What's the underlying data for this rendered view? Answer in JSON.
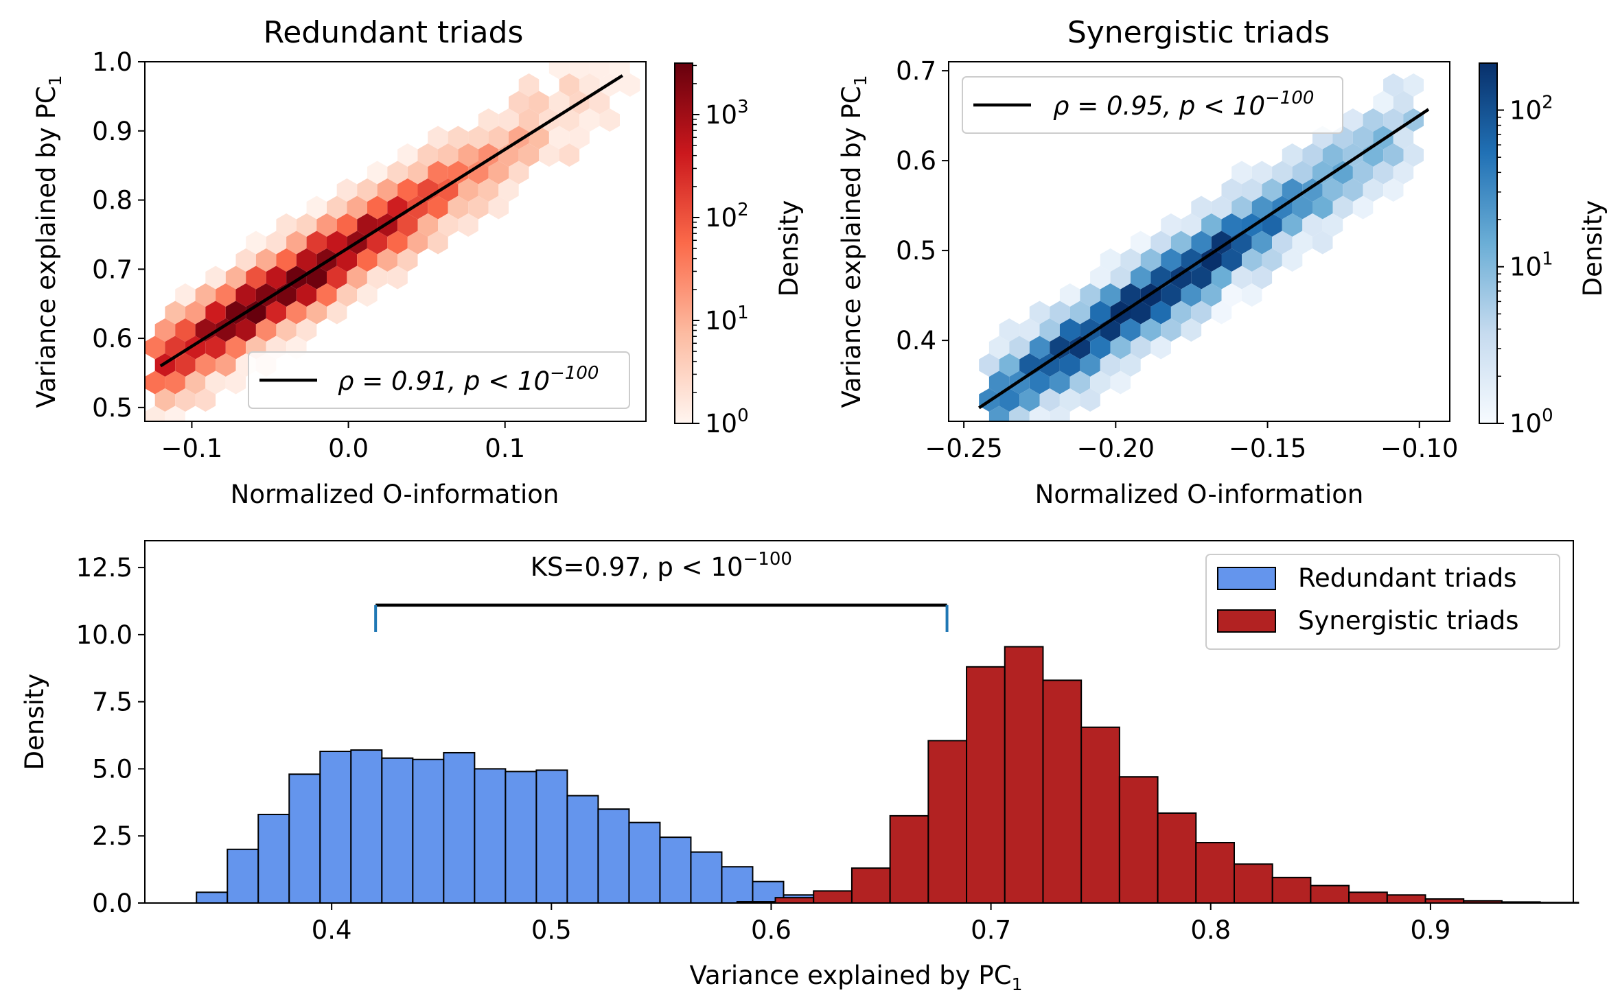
{
  "chart_data": [
    {
      "type": "heatmap",
      "title": "Redundant triads",
      "xlabel": "Normalized O-information",
      "ylabel_main": "Variance explained by PC",
      "ylabel_sub": "1",
      "xlim": [
        -0.13,
        0.19
      ],
      "ylim": [
        0.48,
        1.0
      ],
      "xticks": [
        "−0.1",
        "0.0",
        "0.1"
      ],
      "xtick_values": [
        -0.1,
        0.0,
        0.1
      ],
      "yticks": [
        "0.5",
        "0.6",
        "0.7",
        "0.8",
        "0.9",
        "1.0"
      ],
      "ytick_values": [
        0.5,
        0.6,
        0.7,
        0.8,
        0.9,
        1.0
      ],
      "colorbar": {
        "label": "Density",
        "scale": "log",
        "ticks": [
          "10",
          "10",
          "10",
          "10"
        ],
        "tick_exponents": [
          "0",
          "1",
          "2",
          "3"
        ],
        "tick_values": [
          0,
          1,
          2,
          3
        ],
        "max_log": 3.5,
        "colormap": "Reds"
      },
      "fit_line": {
        "x": [
          -0.12,
          0.175
        ],
        "y": [
          0.56,
          0.98
        ]
      },
      "legend": {
        "text": "ρ = 0.91, p < 10",
        "exponent": "−100",
        "position": "lower right"
      },
      "hex": {
        "center_slope": 1.41,
        "center_intercept": 0.73,
        "spread": 0.035,
        "x_range": [
          -0.125,
          0.18
        ]
      }
    },
    {
      "type": "heatmap",
      "title": "Synergistic triads",
      "xlabel": "Normalized O-information",
      "ylabel_main": "Variance explained by PC",
      "ylabel_sub": "1",
      "xlim": [
        -0.255,
        -0.09
      ],
      "ylim": [
        0.31,
        0.71
      ],
      "xticks": [
        "−0.25",
        "−0.20",
        "−0.15",
        "−0.10"
      ],
      "xtick_values": [
        -0.25,
        -0.2,
        -0.15,
        -0.1
      ],
      "yticks": [
        "0.4",
        "0.5",
        "0.6",
        "0.7"
      ],
      "ytick_values": [
        0.4,
        0.5,
        0.6,
        0.7
      ],
      "colorbar": {
        "label": "Density",
        "scale": "log",
        "ticks": [
          "10",
          "10",
          "10"
        ],
        "tick_exponents": [
          "0",
          "1",
          "2"
        ],
        "tick_values": [
          0,
          1,
          2
        ],
        "max_log": 2.3,
        "colormap": "Blues"
      },
      "fit_line": {
        "x": [
          -0.245,
          -0.097
        ],
        "y": [
          0.325,
          0.657
        ]
      },
      "legend": {
        "text": "ρ = 0.95, p < 10",
        "exponent": "−100",
        "position": "upper left"
      },
      "hex": {
        "center_slope": 2.24,
        "center_intercept": 0.87,
        "spread": 0.028,
        "x_range": [
          -0.245,
          -0.1
        ]
      }
    },
    {
      "type": "bar",
      "xlabel_main": "Variance explained by PC",
      "xlabel_sub": "1",
      "ylabel": "Density",
      "xlim": [
        0.315,
        0.965
      ],
      "ylim": [
        0,
        13.5
      ],
      "xticks": [
        "0.4",
        "0.5",
        "0.6",
        "0.7",
        "0.8",
        "0.9"
      ],
      "xtick_values": [
        0.4,
        0.5,
        0.6,
        0.7,
        0.8,
        0.9
      ],
      "yticks": [
        "0.0",
        "2.5",
        "5.0",
        "7.5",
        "10.0",
        "12.5"
      ],
      "ytick_values": [
        0.0,
        2.5,
        5.0,
        7.5,
        10.0,
        12.5
      ],
      "annotation": {
        "text": "KS=0.97, p < 10",
        "exponent": "−100",
        "x_left": 0.42,
        "x_right": 0.68,
        "y": 11.1,
        "y_tick_bottom": 10.1,
        "text_y": 12.2
      },
      "series": [
        {
          "name": "Redundant triads",
          "color": "#6495ed",
          "bin_start": 0.3385,
          "bin_width": 0.01406,
          "values": [
            0.4,
            2.0,
            3.3,
            4.8,
            5.65,
            5.7,
            5.4,
            5.35,
            5.6,
            5.0,
            4.9,
            4.95,
            4.0,
            3.5,
            3.0,
            2.45,
            1.9,
            1.35,
            0.8,
            0.3
          ]
        },
        {
          "name": "Synergistic triads",
          "color": "#b22222",
          "bin_start": 0.5845,
          "bin_width": 0.0174,
          "values": [
            0.05,
            0.2,
            0.45,
            1.3,
            3.25,
            6.05,
            8.8,
            9.55,
            8.3,
            6.55,
            4.7,
            3.35,
            2.25,
            1.45,
            0.95,
            0.65,
            0.4,
            0.3,
            0.15,
            0.08,
            0.04,
            0.02
          ]
        }
      ]
    }
  ]
}
